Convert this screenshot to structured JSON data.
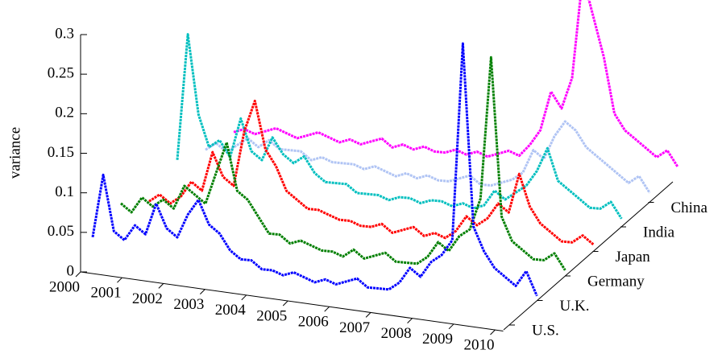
{
  "chart_data": {
    "type": "waterfall3d",
    "y_label": "variance",
    "xlim": [
      2000,
      2010
    ],
    "xticks": [
      2000,
      2001,
      2002,
      2003,
      2004,
      2005,
      2006,
      2007,
      2008,
      2009,
      2010
    ],
    "ylim": [
      0,
      0.3
    ],
    "yticks": [
      0,
      0.05,
      0.1,
      0.15,
      0.2,
      0.25,
      0.3
    ],
    "x": [
      2000,
      2000.25,
      2000.5,
      2000.75,
      2001,
      2001.25,
      2001.5,
      2001.75,
      2002,
      2002.25,
      2002.5,
      2002.75,
      2003,
      2003.25,
      2003.5,
      2003.75,
      2004,
      2004.25,
      2004.5,
      2004.75,
      2005,
      2005.25,
      2005.5,
      2005.75,
      2006,
      2006.25,
      2006.5,
      2006.75,
      2007,
      2007.25,
      2007.5,
      2007.75,
      2008,
      2008.25,
      2008.5,
      2008.75,
      2009,
      2009.25,
      2009.5,
      2009.75,
      2010,
      2010.25,
      2010.5
    ],
    "series": [
      {
        "name": "U.S.",
        "color": "#0000ff",
        "values": [
          0.04,
          0.12,
          0.05,
          0.04,
          0.06,
          0.05,
          0.09,
          0.06,
          0.05,
          0.08,
          0.1,
          0.07,
          0.06,
          0.04,
          0.03,
          0.03,
          0.02,
          0.02,
          0.015,
          0.02,
          0.015,
          0.01,
          0.015,
          0.01,
          0.015,
          0.02,
          0.01,
          0.01,
          0.01,
          0.02,
          0.04,
          0.03,
          0.05,
          0.06,
          0.08,
          0.33,
          0.1,
          0.07,
          0.05,
          0.04,
          0.03,
          0.05,
          0.02
        ]
      },
      {
        "name": "U.K.",
        "color": "#007f00",
        "values": [
          0.05,
          0.04,
          0.06,
          0.05,
          0.06,
          0.05,
          0.08,
          0.07,
          0.06,
          0.1,
          0.14,
          0.08,
          0.07,
          0.05,
          0.03,
          0.03,
          0.02,
          0.025,
          0.02,
          0.015,
          0.015,
          0.01,
          0.02,
          0.01,
          0.015,
          0.02,
          0.01,
          0.01,
          0.01,
          0.02,
          0.04,
          0.03,
          0.05,
          0.06,
          0.1,
          0.28,
          0.08,
          0.05,
          0.04,
          0.03,
          0.03,
          0.04,
          0.02
        ]
      },
      {
        "name": "Germany",
        "color": "#ff0000",
        "values": [
          0.02,
          0.03,
          0.02,
          0.03,
          0.05,
          0.04,
          0.09,
          0.06,
          0.05,
          0.12,
          0.16,
          0.1,
          0.08,
          0.05,
          0.04,
          0.03,
          0.03,
          0.025,
          0.02,
          0.02,
          0.015,
          0.015,
          0.02,
          0.01,
          0.015,
          0.02,
          0.01,
          0.015,
          0.01,
          0.02,
          0.04,
          0.03,
          0.04,
          0.06,
          0.05,
          0.1,
          0.06,
          0.04,
          0.03,
          0.02,
          0.02,
          0.03,
          0.02
        ]
      },
      {
        "name": "Japan",
        "color": "#00bfbf",
        "values": [
          0.04,
          0.2,
          0.1,
          0.06,
          0.07,
          0.05,
          0.1,
          0.06,
          0.05,
          0.08,
          0.06,
          0.05,
          0.06,
          0.04,
          0.03,
          0.03,
          0.03,
          0.02,
          0.02,
          0.02,
          0.015,
          0.02,
          0.02,
          0.015,
          0.02,
          0.02,
          0.015,
          0.02,
          0.015,
          0.02,
          0.04,
          0.03,
          0.04,
          0.05,
          0.07,
          0.1,
          0.06,
          0.05,
          0.04,
          0.03,
          0.03,
          0.04,
          0.02
        ]
      },
      {
        "name": "India",
        "color": "#b0c4f4",
        "values": [
          0.02,
          0.03,
          0.02,
          0.03,
          0.04,
          0.03,
          0.04,
          0.03,
          0.03,
          0.03,
          0.02,
          0.025,
          0.02,
          0.02,
          0.02,
          0.015,
          0.02,
          0.015,
          0.01,
          0.015,
          0.01,
          0.015,
          0.01,
          0.01,
          0.015,
          0.02,
          0.01,
          0.01,
          0.015,
          0.02,
          0.03,
          0.06,
          0.05,
          0.08,
          0.1,
          0.09,
          0.07,
          0.06,
          0.05,
          0.04,
          0.03,
          0.04,
          0.02
        ]
      },
      {
        "name": "China",
        "color": "#ff00ff",
        "values": [
          0.01,
          0.015,
          0.01,
          0.015,
          0.02,
          0.015,
          0.01,
          0.015,
          0.02,
          0.015,
          0.01,
          0.015,
          0.01,
          0.015,
          0.02,
          0.01,
          0.015,
          0.01,
          0.015,
          0.01,
          0.01,
          0.015,
          0.01,
          0.015,
          0.01,
          0.015,
          0.02,
          0.015,
          0.03,
          0.05,
          0.1,
          0.08,
          0.12,
          0.25,
          0.2,
          0.15,
          0.08,
          0.06,
          0.05,
          0.04,
          0.03,
          0.04,
          0.02
        ]
      }
    ]
  }
}
